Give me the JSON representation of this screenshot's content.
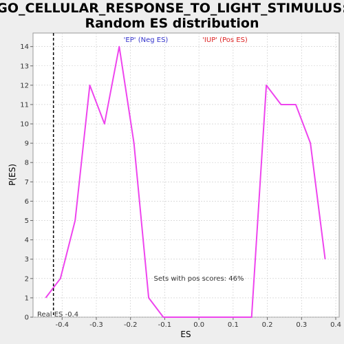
{
  "chart_data": {
    "type": "line",
    "title_line1": "GO_CELLULAR_RESPONSE_TO_LIGHT_STIMULUS:",
    "title_line2": "Random ES distribution",
    "xlabel": "ES",
    "ylabel": "P(ES)",
    "xlim": [
      -0.485,
      0.41
    ],
    "ylim": [
      0,
      14.7
    ],
    "x_ticks": [
      "-0.4",
      "-0.3",
      "-0.2",
      "-0.1",
      "0.0",
      "0.1",
      "0.2",
      "0.3",
      "0.4"
    ],
    "x_tick_values": [
      -0.4,
      -0.3,
      -0.2,
      -0.1,
      0.0,
      0.1,
      0.2,
      0.3,
      0.4
    ],
    "y_ticks": [
      "0",
      "1",
      "2",
      "3",
      "4",
      "5",
      "6",
      "7",
      "8",
      "9",
      "10",
      "11",
      "12",
      "13",
      "14"
    ],
    "y_tick_values": [
      0,
      1,
      2,
      3,
      4,
      5,
      6,
      7,
      8,
      9,
      10,
      11,
      12,
      13,
      14
    ],
    "grid": true,
    "series": [
      {
        "color": "#ee44ee",
        "x": [
          -0.448,
          -0.405,
          -0.362,
          -0.319,
          -0.276,
          -0.233,
          -0.19,
          -0.147,
          -0.104,
          -0.061,
          -0.018,
          0.025,
          0.068,
          0.111,
          0.154,
          0.197,
          0.24,
          0.283,
          0.326,
          0.369
        ],
        "y": [
          1,
          2,
          5,
          12,
          10,
          14,
          9,
          1,
          0,
          0,
          0,
          0,
          0,
          0,
          0,
          12,
          11,
          11,
          9,
          3
        ]
      }
    ],
    "real_es": -0.4253,
    "real_es_label": "Real ES -0.4",
    "neg_label": "'EP' (Neg ES)",
    "pos_label": "'IUP' (Pos ES)",
    "neg_color": "#3333cc",
    "pos_color": "#dd2222",
    "pos_scores_text": "Sets with pos scores: 46%"
  }
}
